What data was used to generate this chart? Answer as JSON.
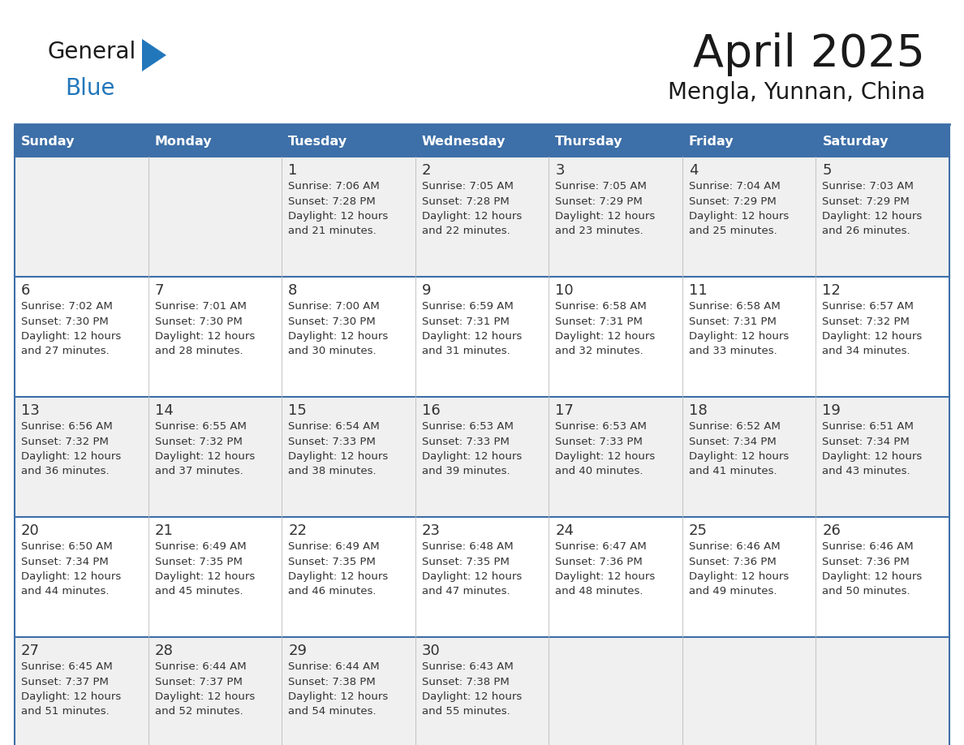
{
  "title": "April 2025",
  "subtitle": "Mengla, Yunnan, China",
  "header_bg": "#3d6fa8",
  "header_text": "#ffffff",
  "day_names": [
    "Sunday",
    "Monday",
    "Tuesday",
    "Wednesday",
    "Thursday",
    "Friday",
    "Saturday"
  ],
  "row_colors": [
    "#f0f0f0",
    "#ffffff"
  ],
  "border_color": "#3d6fa8",
  "text_color": "#333333",
  "logo_general_color": "#1a1a1a",
  "logo_blue_color": "#2277bb",
  "logo_triangle_color": "#2277bb",
  "cell_data": [
    [
      "",
      "",
      "1\nSunrise: 7:06 AM\nSunset: 7:28 PM\nDaylight: 12 hours\nand 21 minutes.",
      "2\nSunrise: 7:05 AM\nSunset: 7:28 PM\nDaylight: 12 hours\nand 22 minutes.",
      "3\nSunrise: 7:05 AM\nSunset: 7:29 PM\nDaylight: 12 hours\nand 23 minutes.",
      "4\nSunrise: 7:04 AM\nSunset: 7:29 PM\nDaylight: 12 hours\nand 25 minutes.",
      "5\nSunrise: 7:03 AM\nSunset: 7:29 PM\nDaylight: 12 hours\nand 26 minutes."
    ],
    [
      "6\nSunrise: 7:02 AM\nSunset: 7:30 PM\nDaylight: 12 hours\nand 27 minutes.",
      "7\nSunrise: 7:01 AM\nSunset: 7:30 PM\nDaylight: 12 hours\nand 28 minutes.",
      "8\nSunrise: 7:00 AM\nSunset: 7:30 PM\nDaylight: 12 hours\nand 30 minutes.",
      "9\nSunrise: 6:59 AM\nSunset: 7:31 PM\nDaylight: 12 hours\nand 31 minutes.",
      "10\nSunrise: 6:58 AM\nSunset: 7:31 PM\nDaylight: 12 hours\nand 32 minutes.",
      "11\nSunrise: 6:58 AM\nSunset: 7:31 PM\nDaylight: 12 hours\nand 33 minutes.",
      "12\nSunrise: 6:57 AM\nSunset: 7:32 PM\nDaylight: 12 hours\nand 34 minutes."
    ],
    [
      "13\nSunrise: 6:56 AM\nSunset: 7:32 PM\nDaylight: 12 hours\nand 36 minutes.",
      "14\nSunrise: 6:55 AM\nSunset: 7:32 PM\nDaylight: 12 hours\nand 37 minutes.",
      "15\nSunrise: 6:54 AM\nSunset: 7:33 PM\nDaylight: 12 hours\nand 38 minutes.",
      "16\nSunrise: 6:53 AM\nSunset: 7:33 PM\nDaylight: 12 hours\nand 39 minutes.",
      "17\nSunrise: 6:53 AM\nSunset: 7:33 PM\nDaylight: 12 hours\nand 40 minutes.",
      "18\nSunrise: 6:52 AM\nSunset: 7:34 PM\nDaylight: 12 hours\nand 41 minutes.",
      "19\nSunrise: 6:51 AM\nSunset: 7:34 PM\nDaylight: 12 hours\nand 43 minutes."
    ],
    [
      "20\nSunrise: 6:50 AM\nSunset: 7:34 PM\nDaylight: 12 hours\nand 44 minutes.",
      "21\nSunrise: 6:49 AM\nSunset: 7:35 PM\nDaylight: 12 hours\nand 45 minutes.",
      "22\nSunrise: 6:49 AM\nSunset: 7:35 PM\nDaylight: 12 hours\nand 46 minutes.",
      "23\nSunrise: 6:48 AM\nSunset: 7:35 PM\nDaylight: 12 hours\nand 47 minutes.",
      "24\nSunrise: 6:47 AM\nSunset: 7:36 PM\nDaylight: 12 hours\nand 48 minutes.",
      "25\nSunrise: 6:46 AM\nSunset: 7:36 PM\nDaylight: 12 hours\nand 49 minutes.",
      "26\nSunrise: 6:46 AM\nSunset: 7:36 PM\nDaylight: 12 hours\nand 50 minutes."
    ],
    [
      "27\nSunrise: 6:45 AM\nSunset: 7:37 PM\nDaylight: 12 hours\nand 51 minutes.",
      "28\nSunrise: 6:44 AM\nSunset: 7:37 PM\nDaylight: 12 hours\nand 52 minutes.",
      "29\nSunrise: 6:44 AM\nSunset: 7:38 PM\nDaylight: 12 hours\nand 54 minutes.",
      "30\nSunrise: 6:43 AM\nSunset: 7:38 PM\nDaylight: 12 hours\nand 55 minutes.",
      "",
      "",
      ""
    ]
  ]
}
